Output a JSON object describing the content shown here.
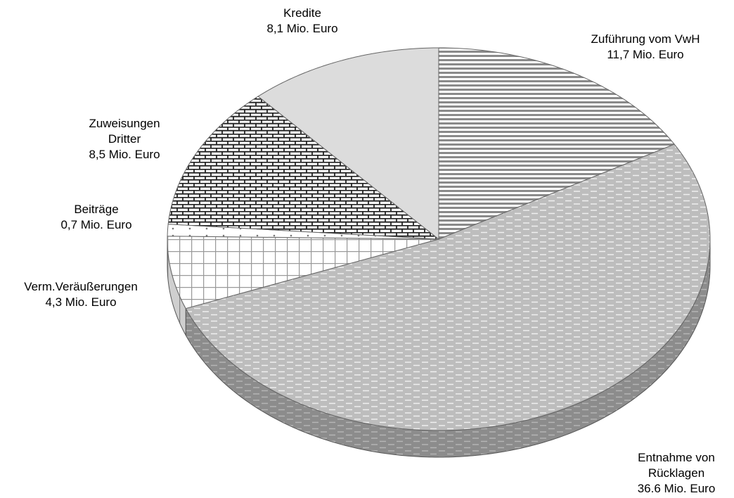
{
  "chart_data": {
    "type": "pie",
    "categories": [
      "Zuführung vom VwH",
      "Entnahme von Rücklagen",
      "Verm.Veräußerungen",
      "Beiträge",
      "Zuweisungen Dritter",
      "Kredite"
    ],
    "values": [
      11.7,
      36.6,
      4.3,
      0.7,
      8.5,
      8.1
    ],
    "value_labels": [
      "11,7 Mio. Euro",
      "36.6 Mio. Euro",
      "4,3 Mio. Euro",
      "0,7 Mio. Euro",
      "8,5 Mio. Euro",
      "8,1 Mio. Euro"
    ]
  }
}
